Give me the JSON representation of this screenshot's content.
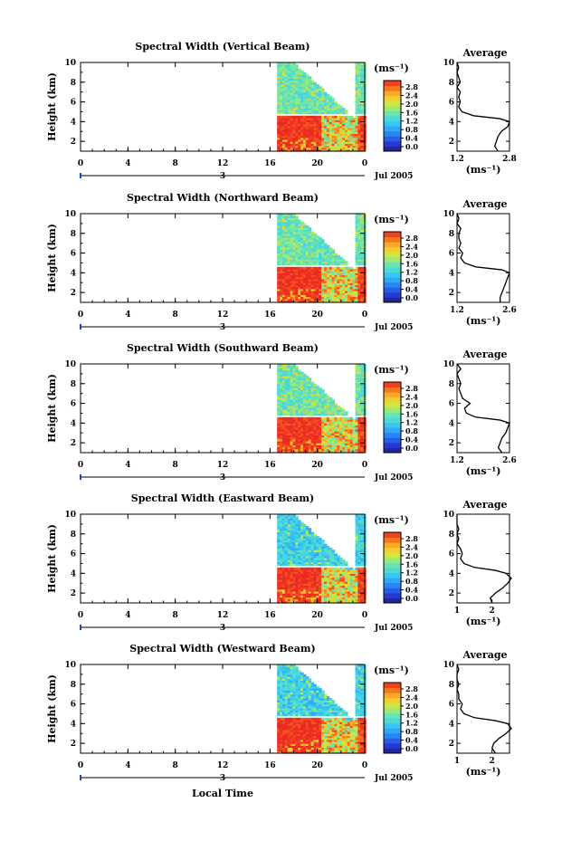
{
  "panels": [
    {
      "title": "Spectral Width (Vertical Beam)",
      "ylabel": "Height (km)",
      "y_ticks": [
        "10",
        "8",
        "6",
        "4",
        "2"
      ],
      "x_ticks": [
        "0",
        "4",
        "8",
        "12",
        "16",
        "20",
        "0"
      ],
      "day_label": "3",
      "date_label": "Jul 2005",
      "unit": "(ms⁻¹)",
      "colorbar_ticks": [
        "2.8",
        "2.4",
        "2.0",
        "1.6",
        "1.2",
        "0.8",
        "0.4",
        "0.0"
      ],
      "avg_title": "Average",
      "avg_y_ticks": [
        "10",
        "8",
        "6",
        "4",
        "2"
      ],
      "avg_x_ticks": [
        "1.2",
        "2.8"
      ],
      "avg_unit": "(ms⁻¹)"
    },
    {
      "title": "Spectral Width (Northward Beam)",
      "ylabel": "Height (km)",
      "y_ticks": [
        "10",
        "8",
        "6",
        "4",
        "2"
      ],
      "x_ticks": [
        "0",
        "4",
        "8",
        "12",
        "16",
        "20",
        "0"
      ],
      "day_label": "3",
      "date_label": "Jul 2005",
      "unit": "(ms⁻¹)",
      "colorbar_ticks": [
        "2.8",
        "2.4",
        "2.0",
        "1.6",
        "1.2",
        "0.8",
        "0.4",
        "0.0"
      ],
      "avg_title": "Average",
      "avg_y_ticks": [
        "10",
        "8",
        "6",
        "4",
        "2"
      ],
      "avg_x_ticks": [
        "1.2",
        "2.6"
      ],
      "avg_unit": "(ms⁻¹)"
    },
    {
      "title": "Spectral Width (Southward Beam)",
      "ylabel": "Height (km)",
      "y_ticks": [
        "10",
        "8",
        "6",
        "4",
        "2"
      ],
      "x_ticks": [
        "0",
        "4",
        "8",
        "12",
        "16",
        "20",
        "0"
      ],
      "day_label": "3",
      "date_label": "Jul 2005",
      "unit": "(ms⁻¹)",
      "colorbar_ticks": [
        "2.8",
        "2.4",
        "2.0",
        "1.6",
        "1.2",
        "0.8",
        "0.4",
        "0.0"
      ],
      "avg_title": "Average",
      "avg_y_ticks": [
        "10",
        "8",
        "6",
        "4",
        "2"
      ],
      "avg_x_ticks": [
        "1.2",
        "2.6"
      ],
      "avg_unit": "(ms⁻¹)"
    },
    {
      "title": "Spectral Width (Eastward Beam)",
      "ylabel": "Height (km)",
      "y_ticks": [
        "10",
        "8",
        "6",
        "4",
        "2"
      ],
      "x_ticks": [
        "0",
        "4",
        "8",
        "12",
        "16",
        "20",
        "0"
      ],
      "day_label": "3",
      "date_label": "Jul 2005",
      "unit": "(ms⁻¹)",
      "colorbar_ticks": [
        "2.8",
        "2.4",
        "2.0",
        "1.6",
        "1.2",
        "0.8",
        "0.4",
        "0.0"
      ],
      "avg_title": "Average",
      "avg_y_ticks": [
        "10",
        "8",
        "6",
        "4",
        "2"
      ],
      "avg_x_ticks": [
        "1",
        "2"
      ],
      "avg_unit": "(ms⁻¹)"
    },
    {
      "title": "Spectral Width (Westward Beam)",
      "ylabel": "Height (km)",
      "y_ticks": [
        "10",
        "8",
        "6",
        "4",
        "2"
      ],
      "x_ticks": [
        "0",
        "4",
        "8",
        "12",
        "16",
        "20",
        "0"
      ],
      "day_label": "3",
      "date_label": "Jul 2005",
      "unit": "(ms⁻¹)",
      "colorbar_ticks": [
        "2.8",
        "2.4",
        "2.0",
        "1.6",
        "1.2",
        "0.8",
        "0.4",
        "0.0"
      ],
      "avg_title": "Average",
      "avg_y_ticks": [
        "10",
        "8",
        "6",
        "4",
        "2"
      ],
      "avg_x_ticks": [
        "1",
        "2"
      ],
      "avg_unit": "(ms⁻¹)"
    }
  ],
  "xlabel": "Local Time",
  "chart_data": [
    {
      "type": "heatmap",
      "title": "Spectral Width (Vertical Beam)",
      "xlabel": "Local Time",
      "ylabel": "Height (km)",
      "xlim": [
        0,
        24
      ],
      "ylim": [
        1,
        10
      ],
      "x_ticks": [
        0,
        4,
        8,
        12,
        16,
        20,
        24
      ],
      "y_ticks": [
        2,
        4,
        6,
        8,
        10
      ],
      "colorbar": {
        "unit": "(ms⁻¹)",
        "range": [
          0.0,
          2.8
        ],
        "ticks": [
          0.0,
          0.4,
          0.8,
          1.2,
          1.6,
          2.0,
          2.4,
          2.8
        ]
      },
      "data_time_range": [
        16.6,
        24
      ],
      "regions": [
        {
          "desc": "lower layer",
          "time": [
            16.6,
            20.2
          ],
          "height": [
            1,
            4.6
          ],
          "value": 2.8
        },
        {
          "desc": "upper layer",
          "time": [
            16.6,
            24
          ],
          "height": [
            4.6,
            10
          ],
          "value": 1.5
        },
        {
          "desc": "late lower",
          "time": [
            23.3,
            24
          ],
          "height": [
            1,
            4.5
          ],
          "value": 2.8
        }
      ],
      "average_profile": {
        "xlim": [
          1.2,
          2.8
        ],
        "height": [
          1.0,
          1.5,
          2.0,
          2.5,
          3.0,
          3.5,
          4.0,
          4.3,
          4.6,
          5.0,
          5.5,
          6.0,
          6.5,
          7.0,
          7.5,
          8.0,
          8.5,
          9.0,
          9.5,
          10.0
        ],
        "value": [
          2.45,
          2.35,
          2.4,
          2.45,
          2.55,
          2.75,
          2.8,
          2.5,
          1.7,
          1.35,
          1.25,
          1.3,
          1.25,
          1.3,
          1.2,
          1.3,
          1.25,
          1.2,
          1.25,
          1.2
        ]
      }
    },
    {
      "type": "heatmap",
      "title": "Spectral Width (Northward Beam)",
      "xlabel": "Local Time",
      "ylabel": "Height (km)",
      "xlim": [
        0,
        24
      ],
      "ylim": [
        1,
        10
      ],
      "x_ticks": [
        0,
        4,
        8,
        12,
        16,
        20,
        24
      ],
      "y_ticks": [
        2,
        4,
        6,
        8,
        10
      ],
      "colorbar": {
        "unit": "(ms⁻¹)",
        "range": [
          0.0,
          2.8
        ],
        "ticks": [
          0.0,
          0.4,
          0.8,
          1.2,
          1.6,
          2.0,
          2.4,
          2.8
        ]
      },
      "data_time_range": [
        16.6,
        24
      ],
      "regions": [
        {
          "desc": "lower layer",
          "time": [
            16.6,
            20.2
          ],
          "height": [
            1,
            4.6
          ],
          "value": 2.8
        },
        {
          "desc": "upper layer",
          "time": [
            16.6,
            24
          ],
          "height": [
            4.6,
            10
          ],
          "value": 1.5
        },
        {
          "desc": "late lower",
          "time": [
            23.3,
            24
          ],
          "height": [
            1,
            4.5
          ],
          "value": 2.8
        }
      ],
      "average_profile": {
        "xlim": [
          1.2,
          2.6
        ],
        "height": [
          1.0,
          1.5,
          2.0,
          2.5,
          3.0,
          3.5,
          4.0,
          4.3,
          4.6,
          5.0,
          5.5,
          6.0,
          6.5,
          7.0,
          7.5,
          8.0,
          8.5,
          9.0,
          9.5,
          10.0
        ],
        "value": [
          2.35,
          2.35,
          2.4,
          2.45,
          2.5,
          2.55,
          2.6,
          2.4,
          1.7,
          1.4,
          1.3,
          1.35,
          1.25,
          1.3,
          1.25,
          1.25,
          1.3,
          1.2,
          1.25,
          1.2
        ]
      }
    },
    {
      "type": "heatmap",
      "title": "Spectral Width (Southward Beam)",
      "xlabel": "Local Time",
      "ylabel": "Height (km)",
      "xlim": [
        0,
        24
      ],
      "ylim": [
        1,
        10
      ],
      "x_ticks": [
        0,
        4,
        8,
        12,
        16,
        20,
        24
      ],
      "y_ticks": [
        2,
        4,
        6,
        8,
        10
      ],
      "colorbar": {
        "unit": "(ms⁻¹)",
        "range": [
          0.0,
          2.8
        ],
        "ticks": [
          0.0,
          0.4,
          0.8,
          1.2,
          1.6,
          2.0,
          2.4,
          2.8
        ]
      },
      "data_time_range": [
        16.6,
        24
      ],
      "regions": [
        {
          "desc": "lower layer",
          "time": [
            16.6,
            20.2
          ],
          "height": [
            1,
            4.6
          ],
          "value": 2.8
        },
        {
          "desc": "upper layer",
          "time": [
            16.6,
            24
          ],
          "height": [
            4.6,
            10
          ],
          "value": 1.5
        },
        {
          "desc": "late lower",
          "time": [
            23.3,
            24
          ],
          "height": [
            1,
            4.5
          ],
          "value": 2.8
        }
      ],
      "average_profile": {
        "xlim": [
          1.2,
          2.6
        ],
        "height": [
          1.0,
          1.5,
          2.0,
          2.5,
          3.0,
          3.5,
          4.0,
          4.3,
          4.6,
          5.0,
          5.5,
          6.0,
          6.5,
          7.0,
          7.5,
          8.0,
          8.5,
          9.0,
          9.5,
          10.0
        ],
        "value": [
          2.4,
          2.3,
          2.35,
          2.4,
          2.5,
          2.55,
          2.6,
          2.35,
          1.7,
          1.45,
          1.4,
          1.55,
          1.35,
          1.3,
          1.25,
          1.3,
          1.25,
          1.2,
          1.3,
          1.2
        ]
      }
    },
    {
      "type": "heatmap",
      "title": "Spectral Width (Eastward Beam)",
      "xlabel": "Local Time",
      "ylabel": "Height (km)",
      "xlim": [
        0,
        24
      ],
      "ylim": [
        1,
        10
      ],
      "x_ticks": [
        0,
        4,
        8,
        12,
        16,
        20,
        24
      ],
      "y_ticks": [
        2,
        4,
        6,
        8,
        10
      ],
      "colorbar": {
        "unit": "(ms⁻¹)",
        "range": [
          0.0,
          2.8
        ],
        "ticks": [
          0.0,
          0.4,
          0.8,
          1.2,
          1.6,
          2.0,
          2.4,
          2.8
        ]
      },
      "data_time_range": [
        16.6,
        24
      ],
      "regions": [
        {
          "desc": "lower layer",
          "time": [
            16.6,
            20.2
          ],
          "height": [
            1,
            4.6
          ],
          "value": 2.8
        },
        {
          "desc": "upper layer",
          "time": [
            16.6,
            24
          ],
          "height": [
            4.6,
            10
          ],
          "value": 1.2
        },
        {
          "desc": "late lower",
          "time": [
            23.3,
            24
          ],
          "height": [
            1,
            4.5
          ],
          "value": 2.8
        }
      ],
      "average_profile": {
        "xlim": [
          1.0,
          2.5
        ],
        "height": [
          1.0,
          1.5,
          2.0,
          2.5,
          3.0,
          3.5,
          4.0,
          4.3,
          4.6,
          5.0,
          5.5,
          6.0,
          6.5,
          7.0,
          7.5,
          8.0,
          8.5,
          9.0,
          9.5,
          10.0
        ],
        "value": [
          2.0,
          1.95,
          2.1,
          2.3,
          2.45,
          2.55,
          2.4,
          2.1,
          1.5,
          1.2,
          1.1,
          1.15,
          1.1,
          1.0,
          1.05,
          1.0,
          1.05,
          1.0,
          1.0,
          1.0
        ]
      }
    },
    {
      "type": "heatmap",
      "title": "Spectral Width (Westward Beam)",
      "xlabel": "Local Time",
      "ylabel": "Height (km)",
      "xlim": [
        0,
        24
      ],
      "ylim": [
        1,
        10
      ],
      "x_ticks": [
        0,
        4,
        8,
        12,
        16,
        20,
        24
      ],
      "y_ticks": [
        2,
        4,
        6,
        8,
        10
      ],
      "colorbar": {
        "unit": "(ms⁻¹)",
        "range": [
          0.0,
          2.8
        ],
        "ticks": [
          0.0,
          0.4,
          0.8,
          1.2,
          1.6,
          2.0,
          2.4,
          2.8
        ]
      },
      "data_time_range": [
        16.6,
        24
      ],
      "regions": [
        {
          "desc": "lower layer",
          "time": [
            16.6,
            20.2
          ],
          "height": [
            1,
            4.6
          ],
          "value": 2.8
        },
        {
          "desc": "upper layer",
          "time": [
            16.6,
            24
          ],
          "height": [
            4.6,
            10
          ],
          "value": 1.2
        },
        {
          "desc": "late lower",
          "time": [
            23.3,
            24
          ],
          "height": [
            1,
            4.5
          ],
          "value": 2.8
        }
      ],
      "average_profile": {
        "xlim": [
          1.0,
          2.5
        ],
        "height": [
          1.0,
          1.5,
          2.0,
          2.5,
          3.0,
          3.5,
          4.0,
          4.3,
          4.6,
          5.0,
          5.5,
          6.0,
          6.5,
          7.0,
          7.5,
          8.0,
          8.5,
          9.0,
          9.5,
          10.0
        ],
        "value": [
          2.1,
          2.0,
          2.05,
          2.2,
          2.4,
          2.55,
          2.45,
          2.1,
          1.5,
          1.2,
          1.1,
          1.15,
          1.05,
          1.05,
          1.0,
          1.05,
          1.0,
          1.0,
          1.05,
          1.0
        ]
      }
    }
  ]
}
